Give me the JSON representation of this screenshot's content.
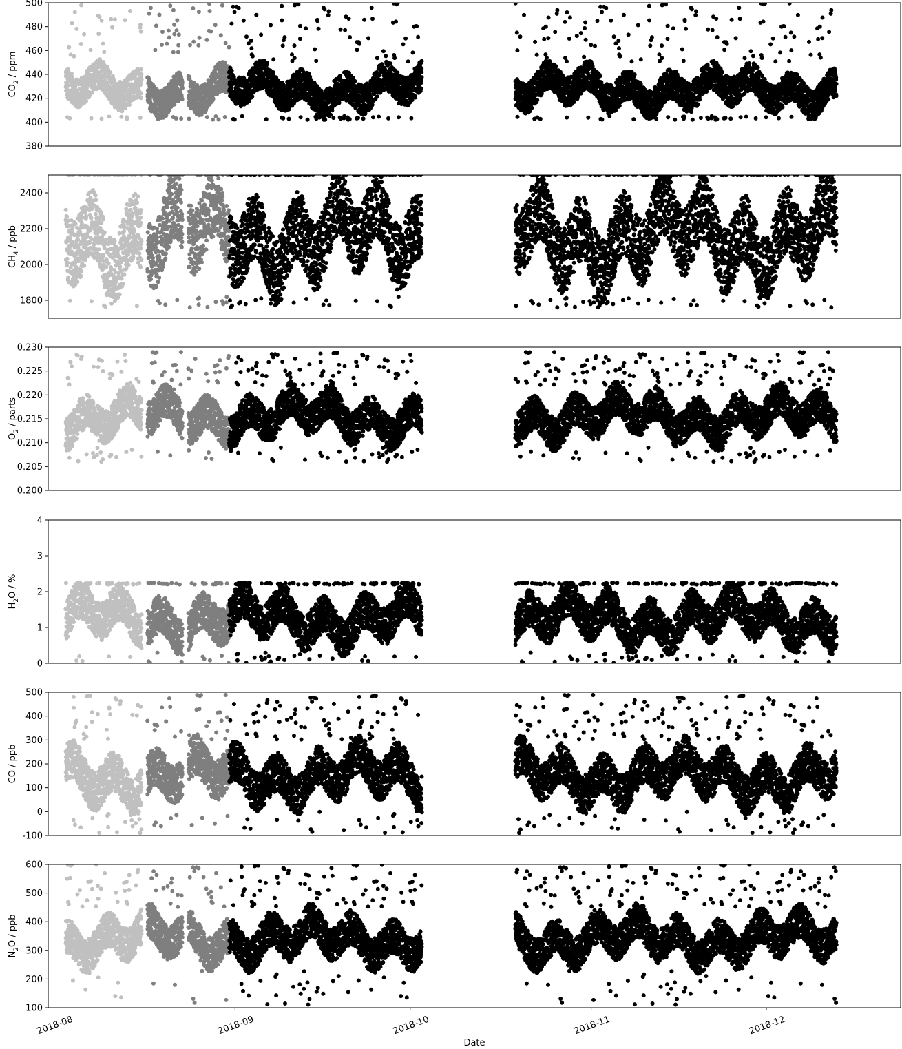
{
  "chart_data": {
    "type": "scatter",
    "xlabel": "Date",
    "x_ticks": [
      "2018-08",
      "2018-09",
      "2018-10",
      "2018-11",
      "2018-12"
    ],
    "x_range": [
      "2018-07-31",
      "2018-12-24"
    ],
    "grid": false,
    "legend": "none",
    "colors": {
      "phase_1": "#c0c0c0",
      "phase_2": "#7f7f7f",
      "phase_3": "#000000"
    },
    "phases": [
      {
        "name": "phase_1",
        "segments": [
          [
            "2018-08-03",
            "2018-08-16"
          ]
        ]
      },
      {
        "name": "phase_2",
        "segments": [
          [
            "2018-08-17",
            "2018-08-23"
          ],
          [
            "2018-08-24",
            "2018-08-31"
          ]
        ]
      },
      {
        "name": "phase_3",
        "segments": [
          [
            "2018-08-31",
            "2018-10-03"
          ],
          [
            "2018-10-19",
            "2018-11-11"
          ],
          [
            "2018-11-11",
            "2018-11-26"
          ],
          [
            "2018-11-26",
            "2018-12-13"
          ]
        ]
      }
    ],
    "panels": [
      {
        "ylabel_main": "CO",
        "ylabel_sub": "2",
        "ylabel_rest": " / ppm",
        "ylim": [
          380,
          500
        ],
        "yticks": [
          "380",
          "400",
          "420",
          "440",
          "460",
          "480",
          "500"
        ],
        "baseline": 412,
        "min": 402,
        "max": 500,
        "spread": 40,
        "typical_range": [
          405,
          450
        ]
      },
      {
        "ylabel_main": "CH",
        "ylabel_sub": "4",
        "ylabel_rest": " / ppb",
        "ylim": [
          1700,
          2500
        ],
        "yticks": [
          "1800",
          "2000",
          "2200",
          "2400"
        ],
        "baseline": 1870,
        "min": 1760,
        "max": 2500,
        "spread": 650,
        "typical_range": [
          1820,
          2500
        ]
      },
      {
        "ylabel_main": "O",
        "ylabel_sub": "2",
        "ylabel_rest": " / parts",
        "ylim": [
          0.2,
          0.23
        ],
        "yticks": [
          "0.200",
          "0.205",
          "0.210",
          "0.215",
          "0.220",
          "0.225",
          "0.230"
        ],
        "baseline": 0.215,
        "min": 0.206,
        "max": 0.229,
        "spread": 0.006,
        "typical_range": [
          0.209,
          0.222
        ]
      },
      {
        "ylabel_main": "H",
        "ylabel_sub": "2",
        "ylabel_rest": "O / %",
        "ylim": [
          0,
          4
        ],
        "yticks": [
          "0",
          "1",
          "2",
          "3",
          "4"
        ],
        "baseline": 1.1,
        "min": 0.0,
        "max": 2.25,
        "spread": 0.4,
        "typical_range": [
          0.3,
          2.2
        ]
      },
      {
        "ylabel_main": "CO / ppb",
        "ylabel_sub": "",
        "ylabel_rest": "",
        "ylim": [
          -100,
          500
        ],
        "yticks": [
          "-100",
          "0",
          "100",
          "200",
          "300",
          "400",
          "500"
        ],
        "baseline": 130,
        "min": -90,
        "max": 490,
        "spread": 180,
        "typical_range": [
          0,
          300
        ]
      },
      {
        "ylabel_main": "N",
        "ylabel_sub": "2",
        "ylabel_rest": "O / ppb",
        "ylim": [
          100,
          600
        ],
        "yticks": [
          "100",
          "200",
          "300",
          "400",
          "500",
          "600"
        ],
        "baseline": 330,
        "min": 110,
        "max": 600,
        "spread": 200,
        "typical_range": [
          230,
          450
        ]
      }
    ]
  }
}
